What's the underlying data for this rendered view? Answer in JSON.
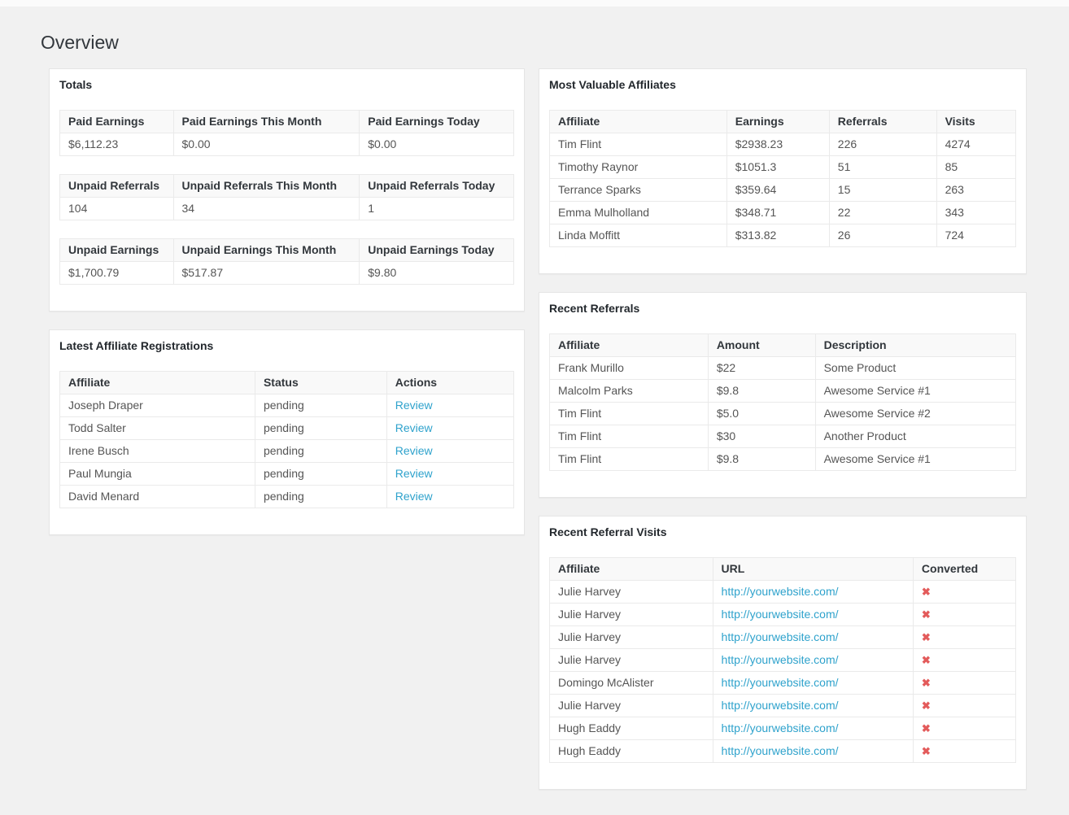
{
  "page": {
    "title": "Overview"
  },
  "colors": {
    "page_bg": "#f1f1f1",
    "link_blue": "#2ea2cc",
    "cross_red": "#e35b5b"
  },
  "totals": {
    "heading": "Totals",
    "tables": [
      {
        "headers": [
          "Paid Earnings",
          "Paid Earnings This Month",
          "Paid Earnings Today"
        ],
        "values": [
          "$6,112.23",
          "$0.00",
          "$0.00"
        ]
      },
      {
        "headers": [
          "Unpaid Referrals",
          "Unpaid Referrals This Month",
          "Unpaid Referrals Today"
        ],
        "values": [
          "104",
          "34",
          "1"
        ]
      },
      {
        "headers": [
          "Unpaid Earnings",
          "Unpaid Earnings This Month",
          "Unpaid Earnings Today"
        ],
        "values": [
          "$1,700.79",
          "$517.87",
          "$9.80"
        ]
      }
    ]
  },
  "registrations": {
    "heading": "Latest Affiliate Registrations",
    "headers": [
      "Affiliate",
      "Status",
      "Actions"
    ],
    "rows": [
      {
        "affiliate": "Joseph Draper",
        "status": "pending",
        "action": "Review"
      },
      {
        "affiliate": "Todd Salter",
        "status": "pending",
        "action": "Review"
      },
      {
        "affiliate": "Irene Busch",
        "status": "pending",
        "action": "Review"
      },
      {
        "affiliate": "Paul Mungia",
        "status": "pending",
        "action": "Review"
      },
      {
        "affiliate": "David Menard",
        "status": "pending",
        "action": "Review"
      }
    ]
  },
  "most_valuable": {
    "heading": "Most Valuable Affiliates",
    "headers": [
      "Affiliate",
      "Earnings",
      "Referrals",
      "Visits"
    ],
    "rows": [
      [
        "Tim Flint",
        "$2938.23",
        "226",
        "4274"
      ],
      [
        "Timothy Raynor",
        "$1051.3",
        "51",
        "85"
      ],
      [
        "Terrance Sparks",
        "$359.64",
        "15",
        "263"
      ],
      [
        "Emma Mulholland",
        "$348.71",
        "22",
        "343"
      ],
      [
        "Linda Moffitt",
        "$313.82",
        "26",
        "724"
      ]
    ]
  },
  "recent_referrals": {
    "heading": "Recent Referrals",
    "headers": [
      "Affiliate",
      "Amount",
      "Description"
    ],
    "rows": [
      [
        "Frank Murillo",
        "$22",
        "Some Product"
      ],
      [
        "Malcolm Parks",
        "$9.8",
        "Awesome Service #1"
      ],
      [
        "Tim Flint",
        "$5.0",
        "Awesome Service #2"
      ],
      [
        "Tim Flint",
        "$30",
        "Another Product"
      ],
      [
        "Tim Flint",
        "$9.8",
        "Awesome Service #1"
      ]
    ]
  },
  "recent_visits": {
    "heading": "Recent Referral Visits",
    "headers": [
      "Affiliate",
      "URL",
      "Converted"
    ],
    "not_converted_glyph": "✖",
    "rows": [
      {
        "affiliate": "Julie Harvey",
        "url": "http://yourwebsite.com/"
      },
      {
        "affiliate": "Julie Harvey",
        "url": "http://yourwebsite.com/"
      },
      {
        "affiliate": "Julie Harvey",
        "url": "http://yourwebsite.com/"
      },
      {
        "affiliate": "Julie Harvey",
        "url": "http://yourwebsite.com/"
      },
      {
        "affiliate": "Domingo McAlister",
        "url": "http://yourwebsite.com/"
      },
      {
        "affiliate": "Julie Harvey",
        "url": "http://yourwebsite.com/"
      },
      {
        "affiliate": "Hugh Eaddy",
        "url": "http://yourwebsite.com/"
      },
      {
        "affiliate": "Hugh Eaddy",
        "url": "http://yourwebsite.com/"
      }
    ]
  }
}
